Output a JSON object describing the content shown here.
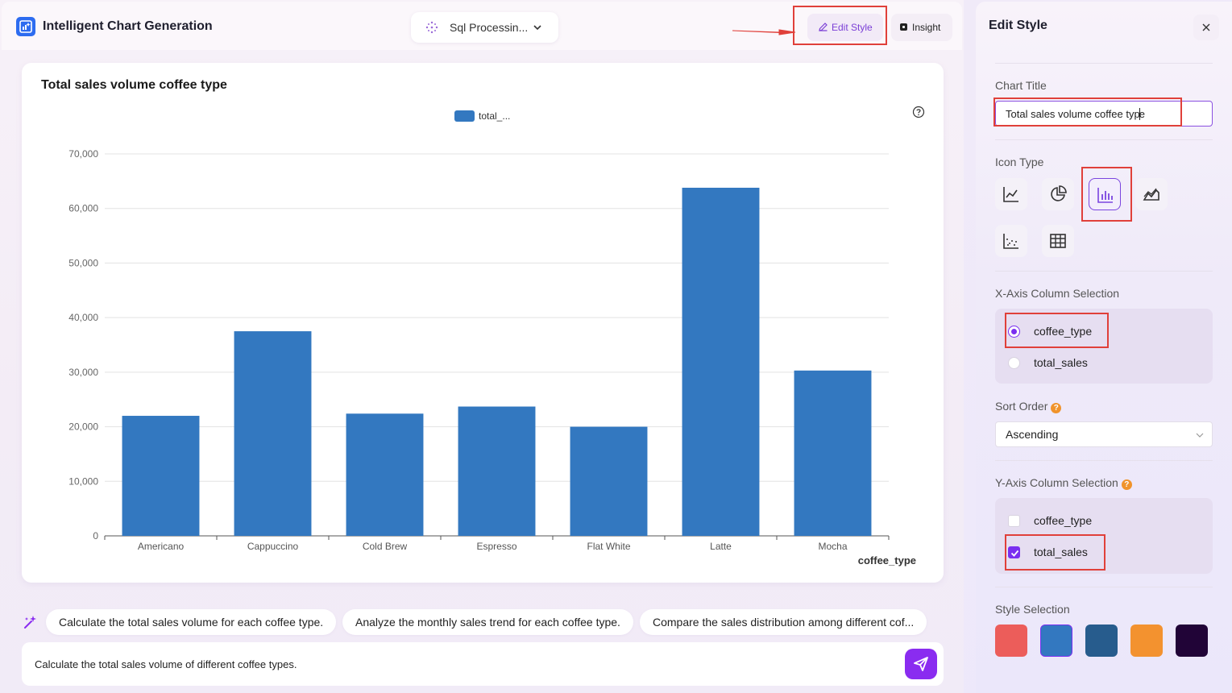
{
  "app": {
    "title": "Intelligent Chart Generation"
  },
  "header": {
    "dataset_label": "Sql Processin...",
    "edit_style_label": "Edit Style",
    "insight_label": "Insight"
  },
  "chart_data": {
    "type": "bar",
    "title": "Total sales volume coffee type",
    "legend": [
      "total_..."
    ],
    "legend_position": "top-center",
    "xlabel": "coffee_type",
    "ylabel": "",
    "categories": [
      "Americano",
      "Cappuccino",
      "Cold Brew",
      "Espresso",
      "Flat White",
      "Latte",
      "Mocha"
    ],
    "series": [
      {
        "name": "total_...",
        "values": [
          22000,
          37500,
          22400,
          23700,
          20000,
          63800,
          30300
        ]
      }
    ],
    "ylim": [
      0,
      70000
    ],
    "yticks": [
      "0",
      "10,000",
      "20,000",
      "30,000",
      "40,000",
      "50,000",
      "60,000",
      "70,000"
    ],
    "grid": true,
    "color": "#3378c0"
  },
  "suggestions": [
    "Calculate the total sales volume for each coffee type.",
    "Analyze the monthly sales trend for each coffee type.",
    "Compare the sales distribution among different cof..."
  ],
  "query": {
    "text": "Calculate the total sales volume of different coffee types."
  },
  "panel": {
    "title": "Edit Style",
    "chart_title_label": "Chart Title",
    "chart_title_value": "Total sales volume coffee type",
    "icon_type_label": "Icon Type",
    "icon_types": [
      "line-chart-icon",
      "pie-chart-icon",
      "bar-chart-icon",
      "area-chart-icon",
      "scatter-chart-icon",
      "table-icon"
    ],
    "selected_icon_type": "bar-chart-icon",
    "x_axis_label": "X-Axis Column Selection",
    "x_options": [
      "coffee_type",
      "total_sales"
    ],
    "x_selected": "coffee_type",
    "sort_order_label": "Sort Order",
    "sort_order_value": "Ascending",
    "y_axis_label": "Y-Axis Column Selection",
    "y_options": [
      "coffee_type",
      "total_sales"
    ],
    "y_checked": [
      "total_sales"
    ],
    "style_label": "Style Selection",
    "style_colors": [
      "#ec5d5a",
      "#3378c0",
      "#275c8d",
      "#f3922f",
      "#210437"
    ],
    "selected_style": "#3378c0"
  },
  "highlight_color": "#e0403a"
}
